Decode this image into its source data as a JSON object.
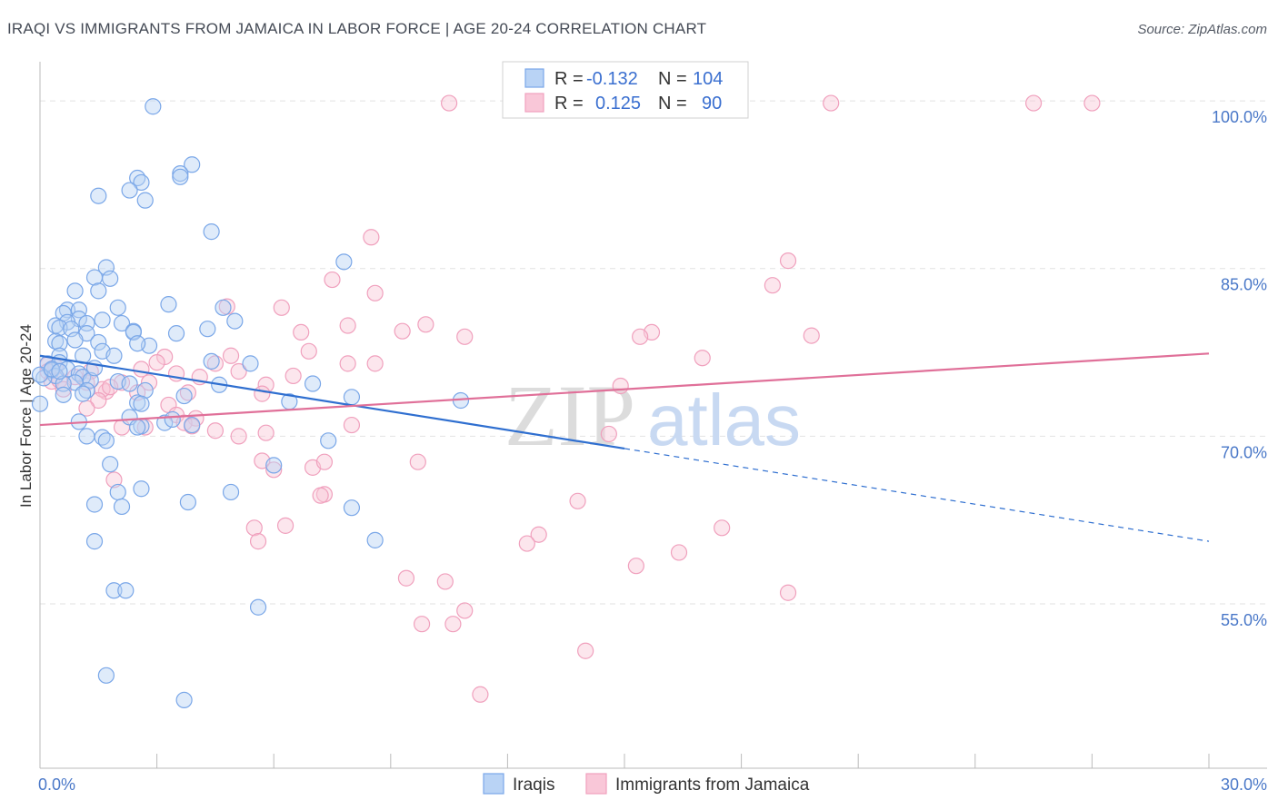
{
  "title": "IRAQI VS IMMIGRANTS FROM JAMAICA IN LABOR FORCE | AGE 20-24 CORRELATION CHART",
  "source": "Source: ZipAtlas.com",
  "watermark": {
    "zip": "ZIP",
    "atlas": "atlas"
  },
  "chart_data": {
    "type": "scatter",
    "xlabel": "",
    "ylabel": "In Labor Force | Age 20-24",
    "xlim": [
      0,
      30
    ],
    "ylim": [
      40.3,
      103.5
    ],
    "x_tick_labels": [
      "0.0%",
      "30.0%"
    ],
    "y_ticks": [
      100,
      85,
      70,
      55
    ],
    "y_tick_labels": [
      "100.0%",
      "85.0%",
      "70.0%",
      "55.0%"
    ],
    "grid": true,
    "legend": {
      "placement": "top-center",
      "entries": [
        {
          "r_label": "R =",
          "r_value": "-0.132",
          "n_label": "N =",
          "n_value": "104"
        },
        {
          "r_label": "R =",
          "r_value": "0.125",
          "n_label": "N =",
          "n_value": "90"
        }
      ]
    },
    "colors": {
      "iraqis": "#7aa7e8",
      "jamaica": "#f0a0bd",
      "iraqis_line": "#2f6fd0",
      "jamaica_line": "#e07099"
    },
    "series": [
      {
        "name": "Iraqis",
        "trendline": {
          "x": [
            0,
            15
          ],
          "y": [
            77.2,
            68.9
          ],
          "dashed_to": [
            30,
            60.6
          ]
        },
        "points": [
          [
            2.9,
            99.5
          ],
          [
            3.9,
            94.3
          ],
          [
            3.6,
            93.5
          ],
          [
            2.5,
            93.1
          ],
          [
            3.6,
            93.2
          ],
          [
            2.6,
            92.7
          ],
          [
            1.5,
            91.5
          ],
          [
            2.3,
            92.0
          ],
          [
            2.7,
            91.1
          ],
          [
            4.4,
            88.3
          ],
          [
            7.8,
            85.6
          ],
          [
            1.7,
            85.1
          ],
          [
            1.4,
            84.2
          ],
          [
            1.8,
            84.1
          ],
          [
            1.5,
            83.0
          ],
          [
            0.9,
            83.0
          ],
          [
            3.3,
            81.8
          ],
          [
            4.7,
            81.5
          ],
          [
            0.7,
            81.3
          ],
          [
            1.0,
            81.3
          ],
          [
            0.6,
            81.0
          ],
          [
            2.0,
            81.5
          ],
          [
            1.0,
            80.5
          ],
          [
            0.7,
            80.2
          ],
          [
            1.6,
            80.4
          ],
          [
            2.1,
            80.1
          ],
          [
            5.0,
            80.3
          ],
          [
            1.2,
            80.1
          ],
          [
            0.4,
            79.9
          ],
          [
            0.5,
            79.7
          ],
          [
            0.8,
            79.6
          ],
          [
            2.4,
            79.4
          ],
          [
            2.4,
            79.3
          ],
          [
            3.5,
            79.2
          ],
          [
            4.3,
            79.6
          ],
          [
            1.2,
            79.2
          ],
          [
            0.9,
            78.6
          ],
          [
            0.4,
            78.5
          ],
          [
            0.5,
            78.3
          ],
          [
            1.5,
            78.4
          ],
          [
            1.6,
            77.6
          ],
          [
            0.5,
            77.2
          ],
          [
            1.9,
            77.2
          ],
          [
            1.1,
            77.2
          ],
          [
            0.2,
            76.5
          ],
          [
            0.5,
            76.6
          ],
          [
            0.7,
            76.0
          ],
          [
            4.4,
            76.7
          ],
          [
            5.4,
            76.5
          ],
          [
            0.3,
            75.9
          ],
          [
            0.4,
            75.4
          ],
          [
            0.1,
            75.2
          ],
          [
            1.0,
            75.6
          ],
          [
            1.1,
            75.3
          ],
          [
            1.3,
            75.0
          ],
          [
            0.9,
            74.8
          ],
          [
            0.6,
            74.7
          ],
          [
            1.2,
            74.1
          ],
          [
            4.6,
            74.6
          ],
          [
            7.0,
            74.7
          ],
          [
            2.0,
            74.9
          ],
          [
            2.3,
            74.7
          ],
          [
            2.7,
            74.1
          ],
          [
            1.1,
            73.8
          ],
          [
            0.6,
            73.7
          ],
          [
            3.7,
            73.6
          ],
          [
            8.0,
            73.5
          ],
          [
            10.8,
            73.2
          ],
          [
            6.4,
            73.1
          ],
          [
            2.5,
            73.0
          ],
          [
            2.6,
            72.9
          ],
          [
            0.0,
            72.9
          ],
          [
            2.3,
            71.7
          ],
          [
            3.2,
            71.2
          ],
          [
            3.4,
            71.5
          ],
          [
            3.9,
            71.0
          ],
          [
            2.6,
            70.9
          ],
          [
            2.5,
            70.8
          ],
          [
            1.0,
            71.3
          ],
          [
            1.2,
            70.0
          ],
          [
            1.6,
            69.9
          ],
          [
            1.7,
            69.6
          ],
          [
            7.4,
            69.6
          ],
          [
            1.8,
            67.5
          ],
          [
            6.0,
            67.4
          ],
          [
            2.6,
            65.3
          ],
          [
            2.0,
            65.0
          ],
          [
            4.9,
            65.0
          ],
          [
            1.4,
            63.9
          ],
          [
            2.1,
            63.7
          ],
          [
            3.8,
            64.1
          ],
          [
            8.0,
            63.6
          ],
          [
            1.4,
            60.6
          ],
          [
            8.6,
            60.7
          ],
          [
            1.9,
            56.2
          ],
          [
            2.2,
            56.2
          ],
          [
            5.6,
            54.7
          ],
          [
            1.7,
            48.6
          ],
          [
            3.7,
            46.4
          ],
          [
            0.0,
            75.5
          ],
          [
            0.3,
            76.0
          ],
          [
            0.5,
            75.8
          ],
          [
            1.4,
            76.1
          ],
          [
            2.8,
            78.1
          ],
          [
            2.5,
            78.3
          ]
        ]
      },
      {
        "name": "Immigrants from Jamaica",
        "trendline": {
          "x": [
            0,
            30
          ],
          "y": [
            71.0,
            77.4
          ]
        },
        "points": [
          [
            10.5,
            99.8
          ],
          [
            20.3,
            99.8
          ],
          [
            25.5,
            99.8
          ],
          [
            27.0,
            99.8
          ],
          [
            8.5,
            87.8
          ],
          [
            19.2,
            85.7
          ],
          [
            8.6,
            82.8
          ],
          [
            18.8,
            83.5
          ],
          [
            7.5,
            84.0
          ],
          [
            4.8,
            81.6
          ],
          [
            6.2,
            81.5
          ],
          [
            7.9,
            79.9
          ],
          [
            9.9,
            80.0
          ],
          [
            9.3,
            79.4
          ],
          [
            6.7,
            79.3
          ],
          [
            10.9,
            78.9
          ],
          [
            15.7,
            79.3
          ],
          [
            19.8,
            79.0
          ],
          [
            15.4,
            78.9
          ],
          [
            6.9,
            77.6
          ],
          [
            4.9,
            77.2
          ],
          [
            7.9,
            76.5
          ],
          [
            8.6,
            76.5
          ],
          [
            3.2,
            77.1
          ],
          [
            4.5,
            76.5
          ],
          [
            17.0,
            77.0
          ],
          [
            3.0,
            76.6
          ],
          [
            0.2,
            76.4
          ],
          [
            0.4,
            76.2
          ],
          [
            0.2,
            75.8
          ],
          [
            1.3,
            75.8
          ],
          [
            2.6,
            76.0
          ],
          [
            3.5,
            75.6
          ],
          [
            5.1,
            75.8
          ],
          [
            4.1,
            75.3
          ],
          [
            6.5,
            75.4
          ],
          [
            0.9,
            75.3
          ],
          [
            0.3,
            74.9
          ],
          [
            0.5,
            75.0
          ],
          [
            1.2,
            74.8
          ],
          [
            2.1,
            74.8
          ],
          [
            2.8,
            74.8
          ],
          [
            5.8,
            74.6
          ],
          [
            14.9,
            74.5
          ],
          [
            0.6,
            74.2
          ],
          [
            1.7,
            74.0
          ],
          [
            1.6,
            74.2
          ],
          [
            2.5,
            73.9
          ],
          [
            3.8,
            73.9
          ],
          [
            5.7,
            73.8
          ],
          [
            1.5,
            73.2
          ],
          [
            3.3,
            72.8
          ],
          [
            1.2,
            72.5
          ],
          [
            3.5,
            71.9
          ],
          [
            4.0,
            71.6
          ],
          [
            3.7,
            71.2
          ],
          [
            2.1,
            70.8
          ],
          [
            2.7,
            70.8
          ],
          [
            3.9,
            70.9
          ],
          [
            4.5,
            70.5
          ],
          [
            5.8,
            70.3
          ],
          [
            8.0,
            71.0
          ],
          [
            5.1,
            70.0
          ],
          [
            14.6,
            70.2
          ],
          [
            5.7,
            67.8
          ],
          [
            6.0,
            67.0
          ],
          [
            7.0,
            67.2
          ],
          [
            9.7,
            67.7
          ],
          [
            7.3,
            67.7
          ],
          [
            1.9,
            66.1
          ],
          [
            7.3,
            64.8
          ],
          [
            7.2,
            64.7
          ],
          [
            13.8,
            64.2
          ],
          [
            5.5,
            61.8
          ],
          [
            6.3,
            62.0
          ],
          [
            17.5,
            61.8
          ],
          [
            12.8,
            61.2
          ],
          [
            5.6,
            60.6
          ],
          [
            12.5,
            60.4
          ],
          [
            16.4,
            59.6
          ],
          [
            15.3,
            58.4
          ],
          [
            9.4,
            57.3
          ],
          [
            10.4,
            57.0
          ],
          [
            19.2,
            56.0
          ],
          [
            10.9,
            54.4
          ],
          [
            9.8,
            53.2
          ],
          [
            10.6,
            53.2
          ],
          [
            14.0,
            50.8
          ],
          [
            11.3,
            46.9
          ],
          [
            1.8,
            74.4
          ]
        ]
      }
    ]
  },
  "bottom_legend": [
    {
      "label": "Iraqis"
    },
    {
      "label": "Immigrants from Jamaica"
    }
  ]
}
